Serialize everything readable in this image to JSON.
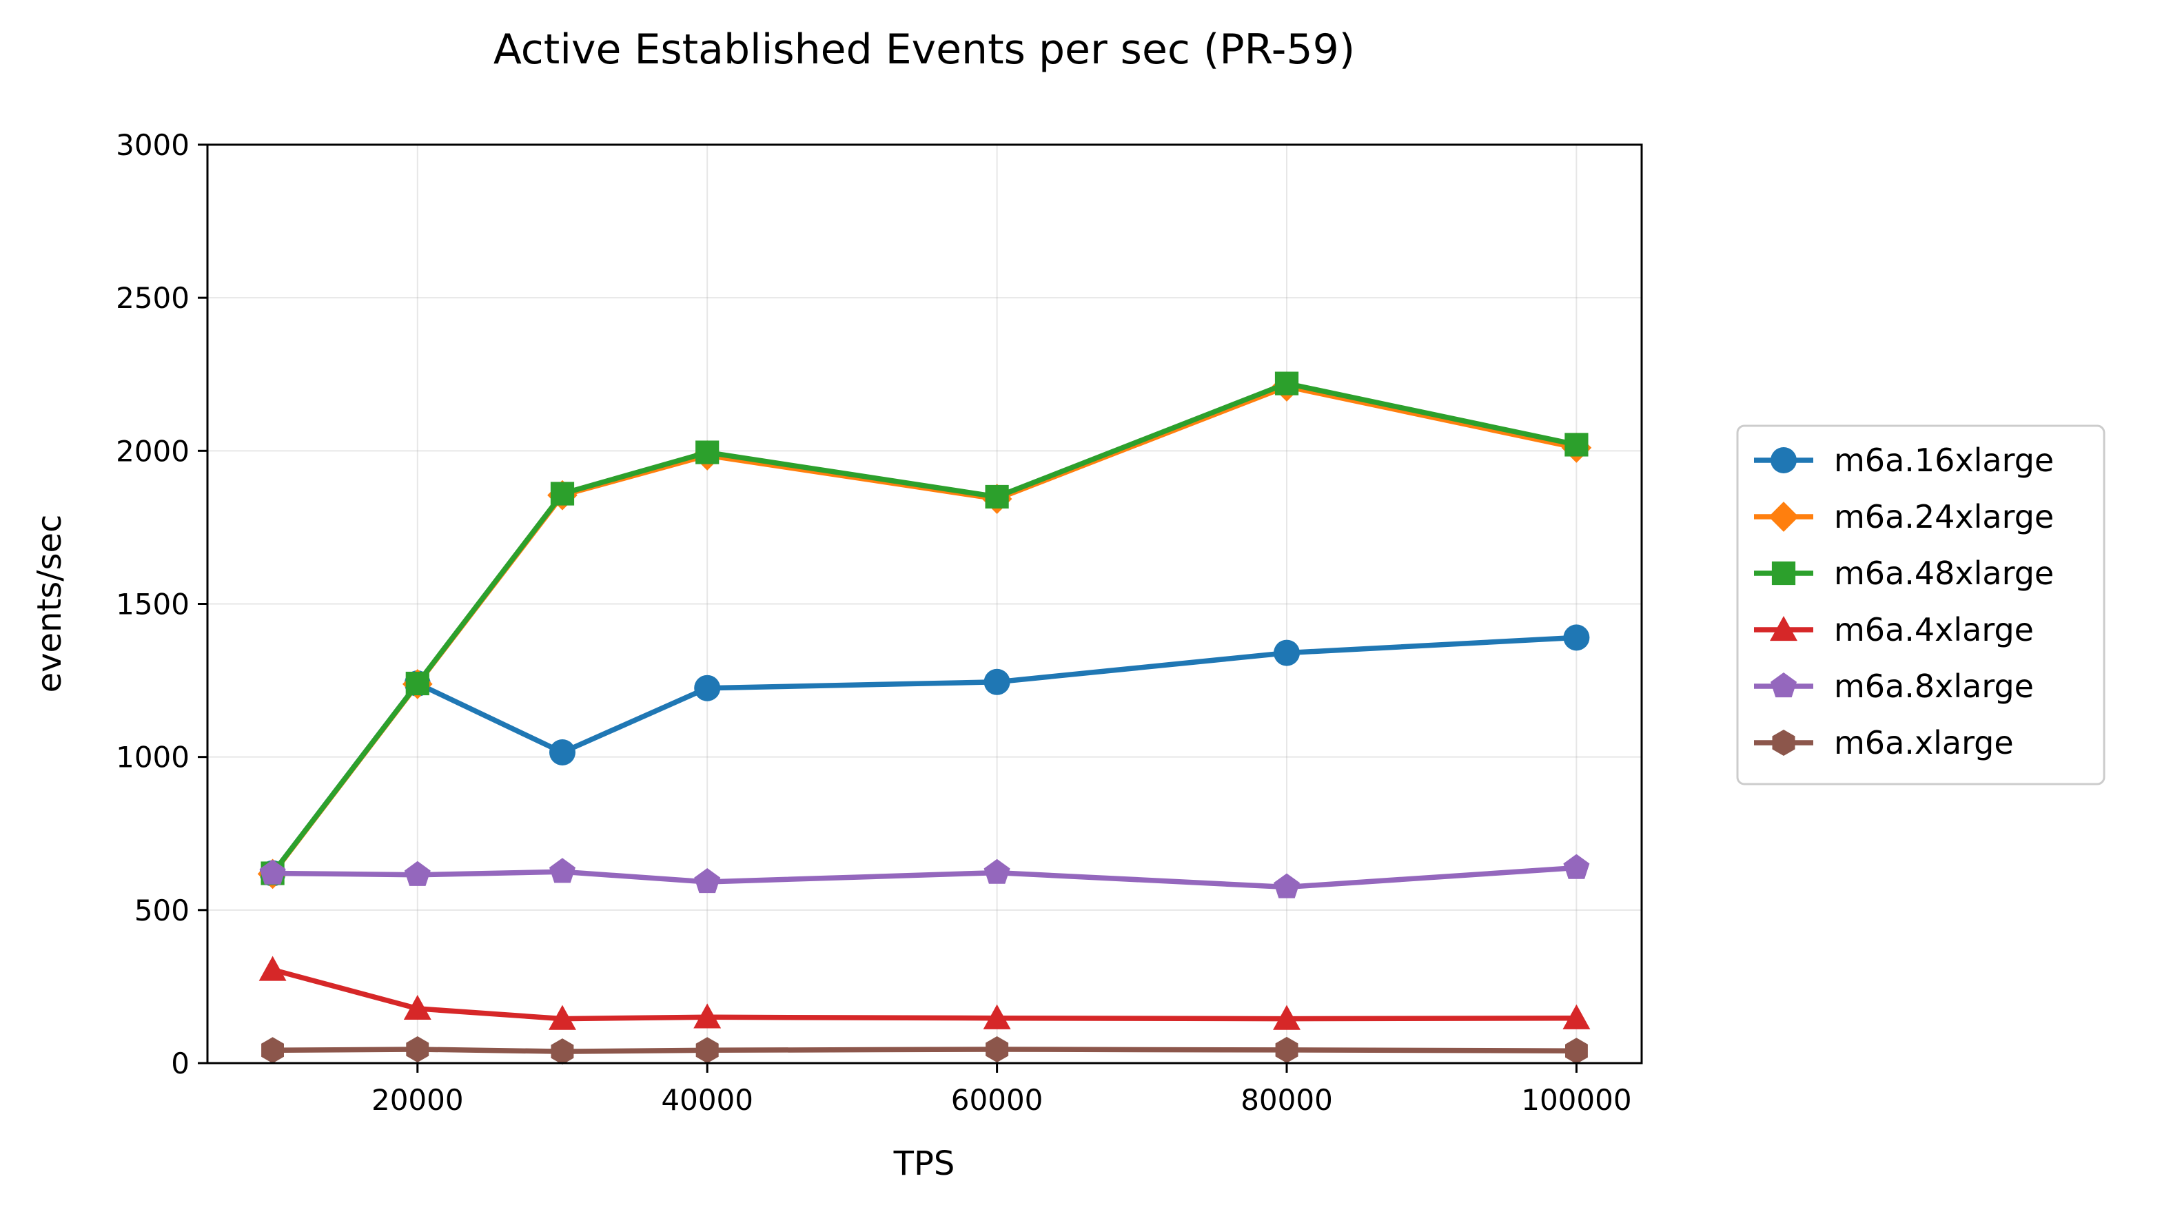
{
  "chart_data": {
    "type": "line",
    "title": "Active Established Events per sec (PR-59)",
    "xlabel": "TPS",
    "ylabel": "events/sec",
    "xlim": [
      5500,
      104500
    ],
    "ylim": [
      0,
      3000
    ],
    "x_ticks": [
      "20000",
      "40000",
      "60000",
      "80000",
      "100000"
    ],
    "y_ticks": [
      "0",
      "500",
      "1000",
      "1500",
      "2000",
      "2500",
      "3000"
    ],
    "grid": true,
    "legend_position": "right, outside plot",
    "x": [
      10000,
      20000,
      30000,
      40000,
      60000,
      80000,
      100000
    ],
    "series": [
      {
        "name": "m6a.16xlarge",
        "color": "#1f77b4",
        "marker": "circle",
        "values": [
          620,
          1240,
          1015,
          1225,
          1245,
          1340,
          1390
        ]
      },
      {
        "name": "m6a.24xlarge",
        "color": "#ff7f0e",
        "marker": "diamond",
        "values": [
          618,
          1238,
          1855,
          1985,
          1843,
          2210,
          2010
        ]
      },
      {
        "name": "m6a.48xlarge",
        "color": "#2ca02c",
        "marker": "square",
        "values": [
          620,
          1240,
          1860,
          1995,
          1850,
          2220,
          2020
        ]
      },
      {
        "name": "m6a.4xlarge",
        "color": "#d62728",
        "marker": "triangle",
        "values": [
          305,
          178,
          145,
          150,
          147,
          145,
          147
        ]
      },
      {
        "name": "m6a.8xlarge",
        "color": "#9467bd",
        "marker": "pentagon",
        "values": [
          620,
          615,
          625,
          592,
          622,
          575,
          638
        ]
      },
      {
        "name": "m6a.xlarge",
        "color": "#8c564b",
        "marker": "hexagon",
        "values": [
          42,
          45,
          38,
          42,
          45,
          43,
          40
        ]
      }
    ]
  }
}
